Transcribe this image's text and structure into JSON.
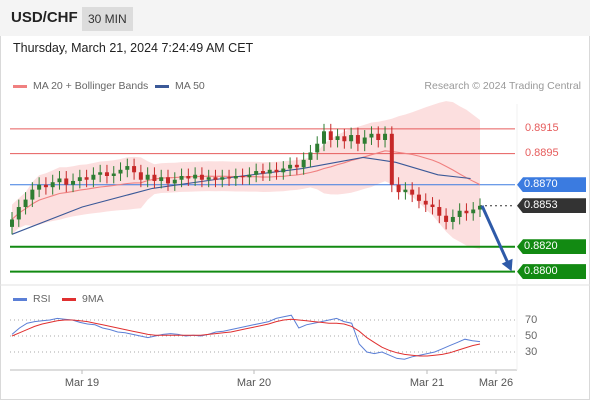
{
  "header": {
    "symbol": "USD/CHF",
    "timeframe": "30 MIN"
  },
  "datetime": "Thursday, March 21, 2024 7:24:49 AM CET",
  "legend_main": {
    "ma20_label": "MA 20 + Bollinger Bands",
    "ma50_label": "MA 50"
  },
  "credit": "Research © 2024 Trading Central",
  "legend_rsi": {
    "rsi_label": "RSI",
    "ma9_label": "9MA"
  },
  "colors": {
    "ma20": "#f08080",
    "ma50": "#3b5998",
    "bands": "#fbd4d4",
    "resistance": "#e65c5c",
    "pivot": "#3b7be0",
    "support": "#128a12",
    "current": "#333333",
    "up_candle": "#2e7d32",
    "down_candle": "#c62828",
    "arrow": "#2e5aa8",
    "rsi": "#5b7fd6",
    "rsi_ma": "#e03030"
  },
  "chart_data": {
    "type": "candlestick",
    "instrument": "USD/CHF",
    "interval": "30 MIN",
    "x_tick_labels": [
      "Mar 19",
      "Mar 20",
      "Mar 21",
      "Mar 26"
    ],
    "price_range": [
      0.879,
      0.8935
    ],
    "levels": [
      {
        "label": "0.8915",
        "value": 0.8915,
        "kind": "resistance"
      },
      {
        "label": "0.8895",
        "value": 0.8895,
        "kind": "resistance"
      },
      {
        "label": "0.8870",
        "value": 0.887,
        "kind": "pivot"
      },
      {
        "label": "0.8853",
        "value": 0.8853,
        "kind": "current"
      },
      {
        "label": "0.8820",
        "value": 0.882,
        "kind": "support"
      },
      {
        "label": "0.8800",
        "value": 0.88,
        "kind": "support"
      }
    ],
    "close_series": [
      0.8842,
      0.8852,
      0.8858,
      0.8866,
      0.887,
      0.8868,
      0.8872,
      0.8875,
      0.887,
      0.8873,
      0.8876,
      0.8874,
      0.8878,
      0.888,
      0.8877,
      0.8879,
      0.8882,
      0.8885,
      0.888,
      0.8874,
      0.8878,
      0.8873,
      0.8876,
      0.8871,
      0.8874,
      0.8877,
      0.8875,
      0.8878,
      0.8874,
      0.8876,
      0.8874,
      0.8876,
      0.8875,
      0.8877,
      0.8876,
      0.8878,
      0.8881,
      0.8879,
      0.8882,
      0.888,
      0.8883,
      0.8886,
      0.8884,
      0.889,
      0.8896,
      0.8903,
      0.8913,
      0.8906,
      0.8909,
      0.8905,
      0.891,
      0.8903,
      0.8908,
      0.8911,
      0.8906,
      0.8911,
      0.887,
      0.8864,
      0.8866,
      0.8862,
      0.8857,
      0.8854,
      0.8852,
      0.8845,
      0.884,
      0.8844,
      0.8849,
      0.8847,
      0.885,
      0.8853
    ],
    "ma50_points": [
      [
        0,
        0.883
      ],
      [
        0.15,
        0.8852
      ],
      [
        0.3,
        0.8867
      ],
      [
        0.45,
        0.8875
      ],
      [
        0.62,
        0.8883
      ],
      [
        0.75,
        0.8892
      ],
      [
        0.82,
        0.8888
      ],
      [
        0.91,
        0.8878
      ],
      [
        0.98,
        0.8875
      ]
    ],
    "target_projection": {
      "from": 0.8853,
      "to": 0.88
    },
    "rsi_range": [
      10,
      80
    ],
    "rsi_levels": [
      70,
      50,
      30
    ],
    "rsi_series": [
      52,
      60,
      66,
      68,
      69,
      70,
      72,
      71,
      70,
      67,
      65,
      64,
      60,
      58,
      55,
      54,
      52,
      50,
      48,
      50,
      52,
      53,
      52,
      50,
      51,
      50,
      52,
      55,
      56,
      58,
      60,
      62,
      64,
      66,
      68,
      72,
      74,
      76,
      60,
      64,
      66,
      68,
      70,
      72,
      68,
      66,
      40,
      30,
      28,
      30,
      26,
      22,
      21,
      24,
      26,
      28,
      30,
      34,
      38,
      42,
      46,
      44,
      43
    ],
    "rsi_ma_series": [
      50,
      54,
      58,
      62,
      65,
      67,
      69,
      70,
      70,
      69,
      68,
      66,
      64,
      62,
      60,
      58,
      56,
      54,
      52,
      51,
      51,
      51,
      51,
      51,
      51,
      51,
      52,
      53,
      54,
      55,
      57,
      59,
      61,
      63,
      65,
      68,
      70,
      71,
      70,
      69,
      68,
      67,
      66,
      66,
      65,
      62,
      56,
      48,
      42,
      36,
      32,
      29,
      27,
      26,
      25,
      25,
      26,
      27,
      29,
      32,
      35,
      38,
      40
    ]
  }
}
